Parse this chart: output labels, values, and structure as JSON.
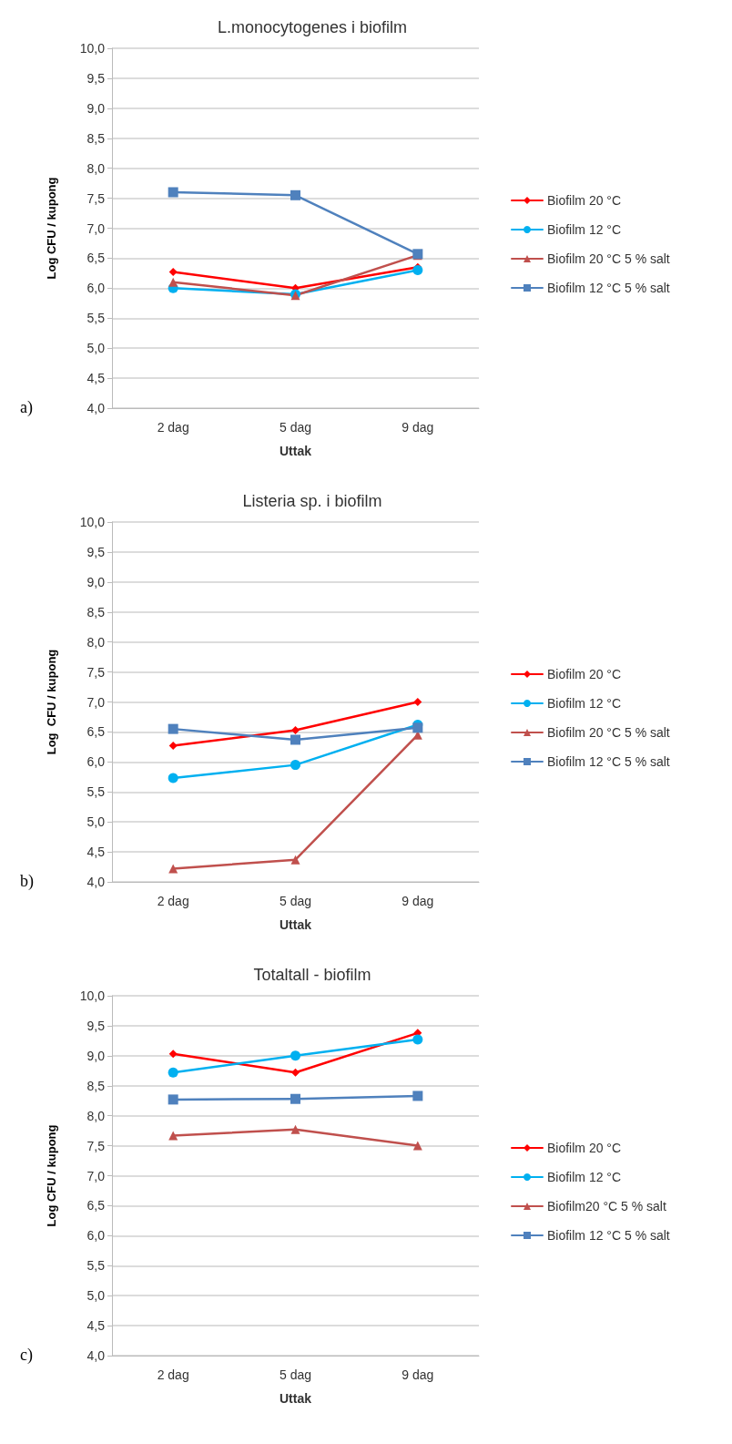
{
  "chart_data": [
    {
      "type": "line",
      "title": "L.monocytogenes i biofilm",
      "xlabel": "Uttak",
      "ylabel": "Log CFU / kupong",
      "categories": [
        "2 dag",
        "5 dag",
        "9 dag"
      ],
      "series": [
        {
          "name": "Biofilm 20 °C",
          "color": "#ff0000",
          "marker": "diamond",
          "values": [
            6.27,
            6.0,
            6.35
          ]
        },
        {
          "name": "Biofilm 12 °C",
          "color": "#00b0f0",
          "marker": "circle",
          "values": [
            6.0,
            5.9,
            6.3
          ]
        },
        {
          "name": "Biofilm 20 °C 5 % salt",
          "color": "#c0504d",
          "marker": "triangle",
          "values": [
            6.1,
            5.88,
            6.55
          ]
        },
        {
          "name": "Biofilm 12 °C 5 % salt",
          "color": "#4f81bd",
          "marker": "square",
          "values": [
            7.6,
            7.55,
            6.57
          ]
        }
      ],
      "ylim": [
        4,
        10
      ],
      "yticks": [
        {
          "value": 4,
          "label": "4,0"
        },
        {
          "value": 4.5,
          "label": "4,5"
        },
        {
          "value": 5,
          "label": "5,0"
        },
        {
          "value": 5.5,
          "label": "5,5"
        },
        {
          "value": 6,
          "label": "6,0"
        },
        {
          "value": 6.5,
          "label": "6,5"
        },
        {
          "value": 7,
          "label": "7,0"
        },
        {
          "value": 7.5,
          "label": "7,5"
        },
        {
          "value": 8,
          "label": "8,0"
        },
        {
          "value": 8.5,
          "label": "8,5"
        },
        {
          "value": 9,
          "label": "9,0"
        },
        {
          "value": 9.5,
          "label": "9,5"
        },
        {
          "value": 10,
          "label": "10,0"
        }
      ],
      "grid": "y",
      "legend": "right",
      "line_style": "solid",
      "annotations": [
        "a)"
      ]
    },
    {
      "type": "line",
      "title": "Listeria sp. i biofilm",
      "xlabel": "Uttak",
      "ylabel": "Log  CFU / kupong",
      "categories": [
        "2 dag",
        "5 dag",
        "9 dag"
      ],
      "series": [
        {
          "name": "Biofilm 20 °C",
          "color": "#ff0000",
          "marker": "diamond",
          "values": [
            6.27,
            6.53,
            7.0
          ]
        },
        {
          "name": "Biofilm 12 °C",
          "color": "#00b0f0",
          "marker": "circle",
          "values": [
            5.73,
            5.95,
            6.62
          ]
        },
        {
          "name": "Biofilm 20 °C 5 % salt",
          "color": "#c0504d",
          "marker": "triangle",
          "values": [
            4.22,
            4.37,
            6.45
          ]
        },
        {
          "name": "Biofilm 12 °C 5 % salt",
          "color": "#4f81bd",
          "marker": "square",
          "values": [
            6.55,
            6.37,
            6.57
          ]
        }
      ],
      "ylim": [
        4,
        10
      ],
      "yticks": [
        {
          "value": 4,
          "label": "4,0"
        },
        {
          "value": 4.5,
          "label": "4,5"
        },
        {
          "value": 5,
          "label": "5,0"
        },
        {
          "value": 5.5,
          "label": "5,5"
        },
        {
          "value": 6,
          "label": "6,0"
        },
        {
          "value": 6.5,
          "label": "6,5"
        },
        {
          "value": 7,
          "label": "7,0"
        },
        {
          "value": 7.5,
          "label": "7,5"
        },
        {
          "value": 8,
          "label": "8,0"
        },
        {
          "value": 8.5,
          "label": "8,5"
        },
        {
          "value": 9,
          "label": "9,0"
        },
        {
          "value": 9.5,
          "label": "9,5"
        },
        {
          "value": 10,
          "label": "10,0"
        }
      ],
      "grid": "y",
      "legend": "right",
      "line_style": "solid",
      "annotations": [
        "b)"
      ]
    },
    {
      "type": "line",
      "title": "Totaltall - biofilm",
      "xlabel": "Uttak",
      "ylabel": "Log CFU / kupong",
      "categories": [
        "2 dag",
        "5 dag",
        "9 dag"
      ],
      "series": [
        {
          "name": "Biofilm 20 °C",
          "color": "#ff0000",
          "marker": "diamond",
          "values": [
            9.03,
            8.72,
            9.38
          ]
        },
        {
          "name": "Biofilm 12 °C",
          "color": "#00b0f0",
          "marker": "circle",
          "values": [
            8.72,
            9.0,
            9.27
          ]
        },
        {
          "name": "Biofilm20 °C 5 % salt",
          "color": "#c0504d",
          "marker": "triangle",
          "values": [
            7.67,
            7.77,
            7.5
          ]
        },
        {
          "name": "Biofilm 12 °C 5 % salt",
          "color": "#4f81bd",
          "marker": "square",
          "values": [
            8.27,
            8.28,
            8.33
          ]
        }
      ],
      "ylim": [
        4,
        10
      ],
      "yticks": [
        {
          "value": 4,
          "label": "4,0"
        },
        {
          "value": 4.5,
          "label": "4,5"
        },
        {
          "value": 5,
          "label": "5,0"
        },
        {
          "value": 5.5,
          "label": "5,5"
        },
        {
          "value": 6,
          "label": "6,0"
        },
        {
          "value": 6.5,
          "label": "6,5"
        },
        {
          "value": 7,
          "label": "7,0"
        },
        {
          "value": 7.5,
          "label": "7,5"
        },
        {
          "value": 8,
          "label": "8,0"
        },
        {
          "value": 8.5,
          "label": "8,5"
        },
        {
          "value": 9,
          "label": "9,0"
        },
        {
          "value": 9.5,
          "label": "9,5"
        },
        {
          "value": 10,
          "label": "10,0"
        }
      ],
      "grid": "y",
      "legend": "right",
      "line_style": "solid",
      "annotations": [
        "c)"
      ]
    }
  ]
}
